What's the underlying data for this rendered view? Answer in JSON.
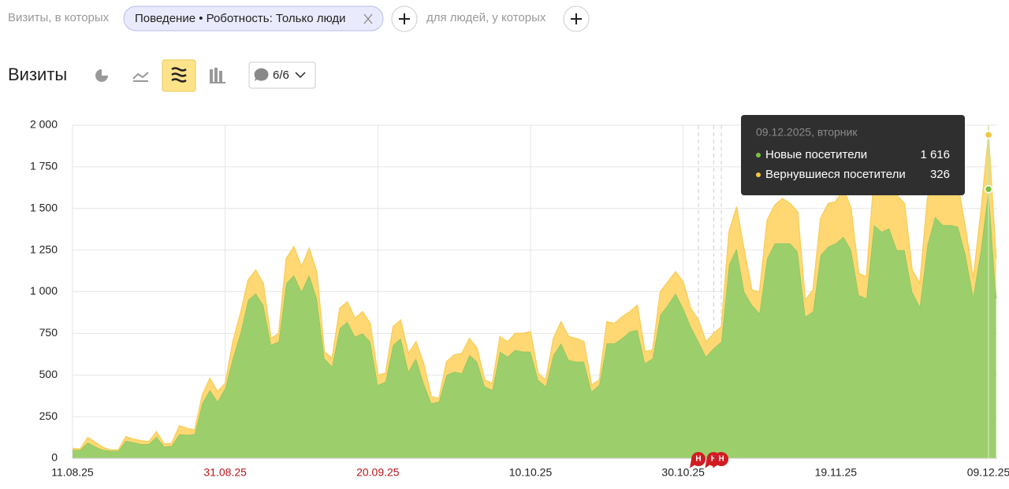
{
  "filters": {
    "prefix": "Визиты, в которых",
    "chip": "Поведение • Роботность: Только люди",
    "middle": "для людей, у которых"
  },
  "toolbar": {
    "title": "Визиты",
    "counter": "6/6"
  },
  "chart_data": {
    "type": "area",
    "stacked": true,
    "categories": [
      "11.08.25",
      null,
      null,
      null,
      null,
      null,
      null,
      null,
      null,
      null,
      null,
      null,
      null,
      null,
      null,
      null,
      null,
      null,
      null,
      null,
      "31.08.25",
      null,
      null,
      null,
      null,
      null,
      null,
      null,
      null,
      null,
      null,
      null,
      null,
      null,
      null,
      null,
      null,
      null,
      null,
      null,
      "20.09.25",
      null,
      null,
      null,
      null,
      null,
      null,
      null,
      null,
      null,
      null,
      null,
      null,
      null,
      null,
      null,
      null,
      null,
      null,
      null,
      "10.10.25",
      null,
      null,
      null,
      null,
      null,
      null,
      null,
      null,
      null,
      null,
      null,
      null,
      null,
      null,
      null,
      null,
      null,
      null,
      null,
      "30.10.25",
      null,
      null,
      null,
      null,
      null,
      null,
      null,
      null,
      null,
      null,
      null,
      null,
      null,
      null,
      null,
      null,
      null,
      null,
      null,
      "19.11.25",
      null,
      null,
      null,
      null,
      null,
      null,
      null,
      null,
      null,
      null,
      null,
      null,
      null,
      null,
      null,
      null,
      null,
      null,
      null,
      "09.12.25",
      null
    ],
    "highlight_categories": [
      20,
      40
    ],
    "highlight_color": "#c0141c",
    "series": [
      {
        "name": "Новые посетители",
        "color": "#9ccf6c",
        "values": [
          50,
          50,
          95,
          70,
          50,
          45,
          45,
          105,
          95,
          85,
          85,
          130,
          70,
          75,
          145,
          140,
          145,
          330,
          410,
          340,
          420,
          600,
          750,
          950,
          990,
          920,
          680,
          700,
          1050,
          1100,
          1000,
          1100,
          960,
          600,
          550,
          780,
          820,
          730,
          750,
          700,
          440,
          460,
          680,
          720,
          520,
          600,
          450,
          330,
          340,
          500,
          520,
          510,
          620,
          580,
          430,
          410,
          640,
          610,
          650,
          640,
          640,
          470,
          430,
          620,
          690,
          590,
          580,
          580,
          400,
          440,
          690,
          690,
          720,
          760,
          770,
          570,
          600,
          860,
          920,
          990,
          900,
          790,
          700,
          610,
          660,
          700,
          1160,
          1260,
          1000,
          920,
          870,
          1200,
          1290,
          1290,
          1290,
          1240,
          850,
          880,
          1220,
          1270,
          1290,
          1330,
          1250,
          980,
          960,
          1400,
          1360,
          1380,
          1250,
          1250,
          1000,
          910,
          1280,
          1450,
          1400,
          1400,
          1390,
          1220,
          970,
          1250,
          1616,
          960
        ]
      },
      {
        "name": "Вернувшиеся посетители",
        "color": "#ffd874",
        "values": [
          10,
          5,
          30,
          25,
          15,
          5,
          5,
          25,
          20,
          20,
          15,
          30,
          15,
          15,
          50,
          40,
          25,
          50,
          70,
          60,
          30,
          100,
          120,
          120,
          140,
          130,
          40,
          50,
          150,
          170,
          150,
          160,
          160,
          40,
          50,
          120,
          120,
          110,
          130,
          110,
          60,
          50,
          110,
          110,
          110,
          100,
          120,
          40,
          20,
          80,
          100,
          120,
          100,
          80,
          40,
          40,
          90,
          90,
          100,
          110,
          120,
          40,
          40,
          100,
          130,
          140,
          140,
          120,
          40,
          30,
          130,
          120,
          130,
          120,
          150,
          70,
          50,
          140,
          140,
          130,
          160,
          110,
          130,
          90,
          90,
          90,
          200,
          250,
          250,
          90,
          130,
          230,
          230,
          270,
          240,
          240,
          100,
          130,
          220,
          260,
          250,
          290,
          250,
          130,
          130,
          280,
          280,
          280,
          330,
          280,
          130,
          140,
          280,
          300,
          280,
          260,
          250,
          160,
          110,
          230,
          326,
          240
        ]
      }
    ],
    "ylim": [
      0,
      2000
    ],
    "yticks": [
      0,
      250,
      500,
      750,
      {
        "value": 1000,
        "label": "1 000"
      },
      {
        "value": 1250,
        "label": "1 250"
      },
      {
        "value": 1500,
        "label": "1 500"
      },
      {
        "value": 1750,
        "label": "1 750"
      },
      {
        "value": 2000,
        "label": "2 000"
      }
    ],
    "grid": true,
    "annotations": [
      {
        "index": 82,
        "label": "Н"
      },
      {
        "index": 84,
        "label": "Н"
      },
      {
        "index": 85,
        "label": "Н"
      }
    ],
    "tooltip": {
      "title": "09.12.2025, вторник",
      "index": 120,
      "rows": [
        {
          "series": 0,
          "label": "1 616"
        },
        {
          "series": 1,
          "label": "326"
        }
      ]
    }
  }
}
